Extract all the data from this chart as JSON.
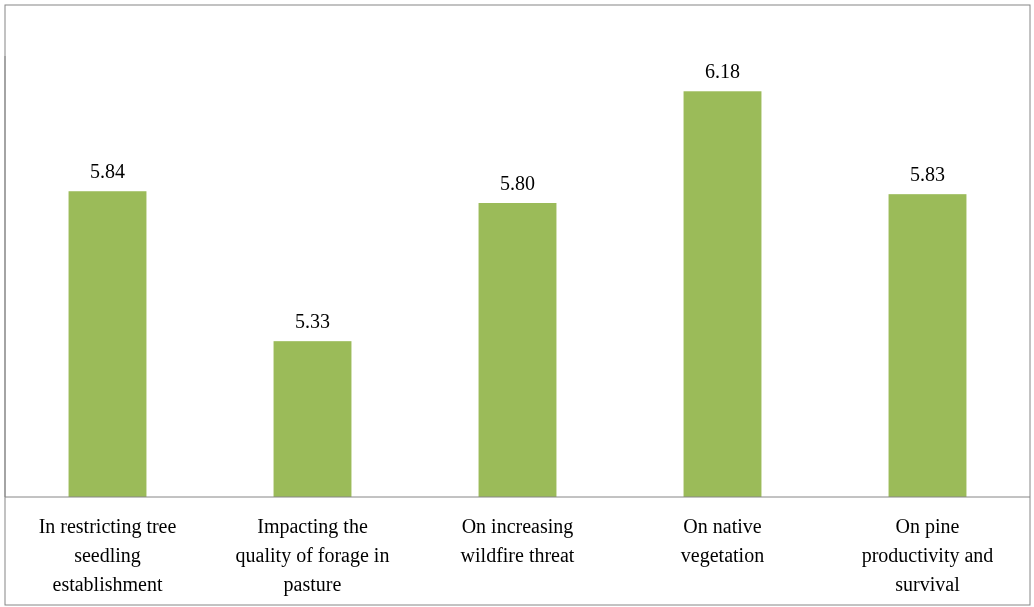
{
  "chart_data": {
    "type": "bar",
    "categories": [
      "In restricting tree seedling establishment",
      "Impacting the quality of forage in pasture",
      "On increasing wildfire threat",
      "On native vegetation",
      "On pine productivity and survival"
    ],
    "values": [
      5.84,
      5.33,
      5.8,
      6.18,
      5.83
    ],
    "color": "#9bbb59",
    "ylim": [
      4.8,
      6.3
    ],
    "data_labels": true,
    "value_labels": [
      "5.84",
      "5.33",
      "5.80",
      "6.18",
      "5.83"
    ],
    "tick_labels": "x"
  }
}
